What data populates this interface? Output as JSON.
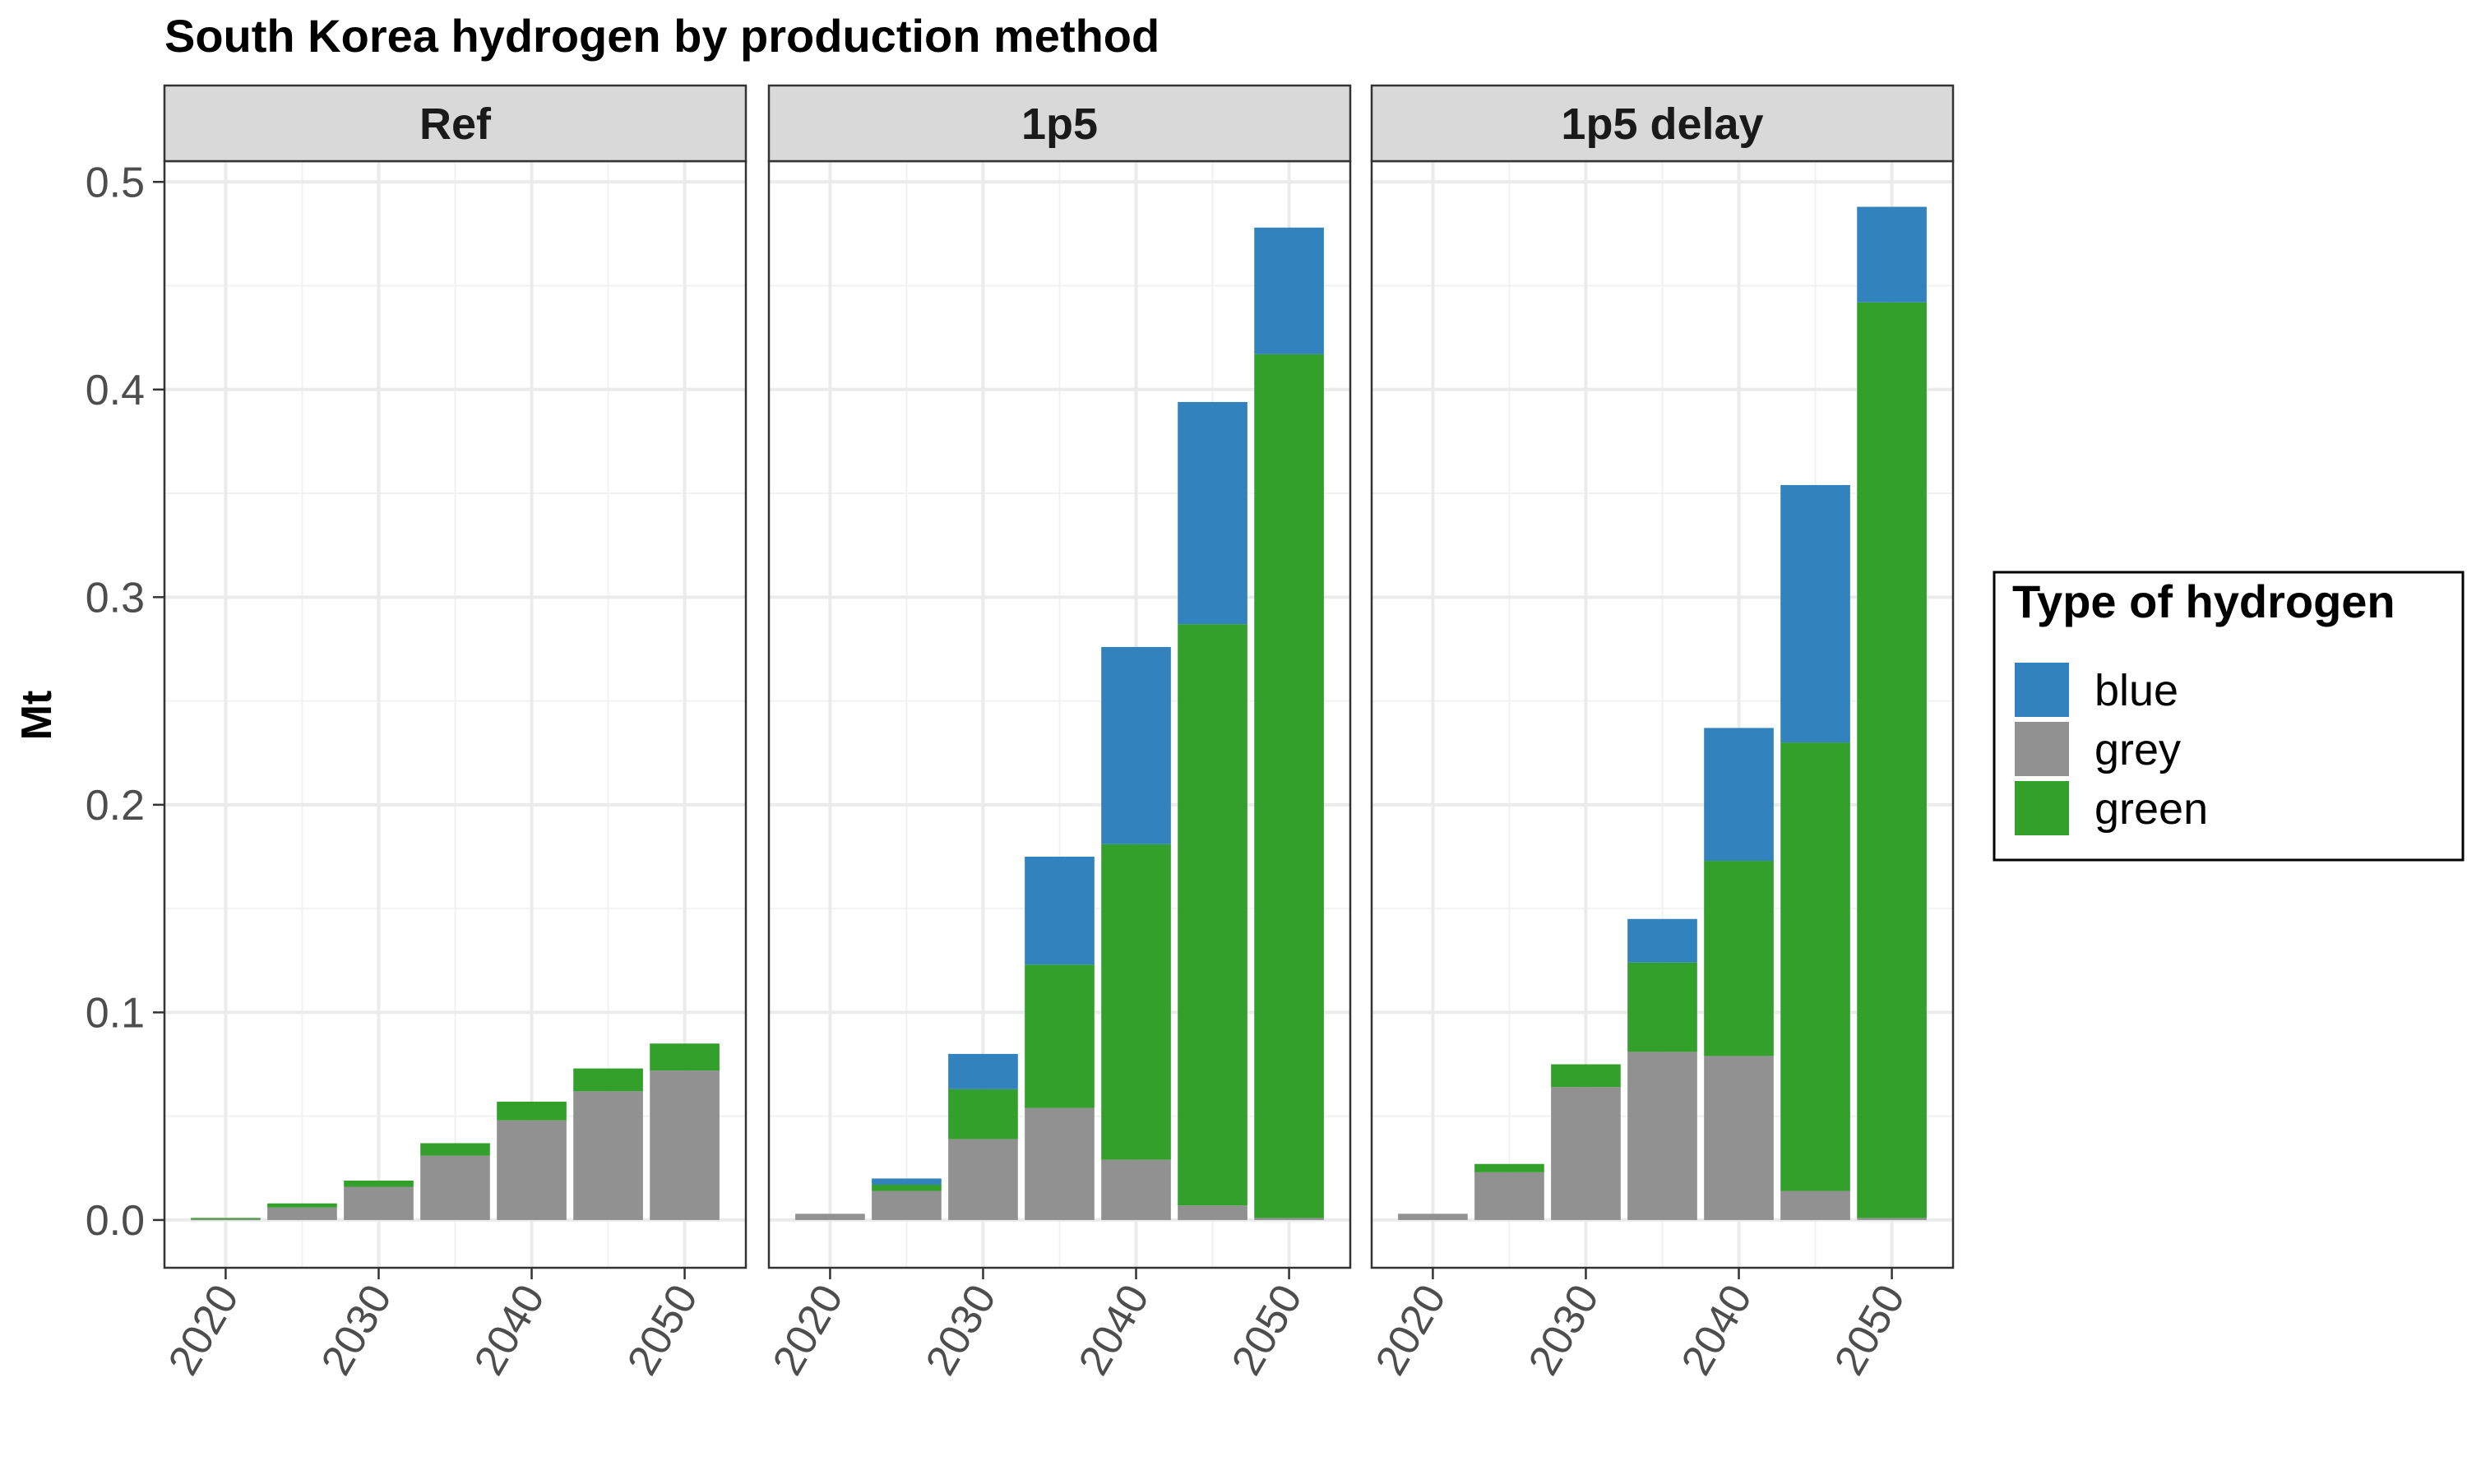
{
  "chart_data": {
    "type": "bar",
    "stacked": true,
    "title": "South Korea hydrogen by production method",
    "xlabel": "",
    "ylabel": "Mt",
    "ylim": [
      -0.023,
      0.51
    ],
    "yticks": [
      "0.0",
      "0.1",
      "0.2",
      "0.3",
      "0.4",
      "0.5"
    ],
    "xticks": [
      "2020",
      "2030",
      "2040",
      "2050"
    ],
    "x": [
      2020,
      2025,
      2030,
      2035,
      2040,
      2045,
      2050
    ],
    "grid": true,
    "legend": {
      "title": "Type of hydrogen",
      "position": "right",
      "entries": [
        "blue",
        "grey",
        "green"
      ]
    },
    "stack_order": [
      "grey",
      "green",
      "blue"
    ],
    "colors": {
      "blue": "#3182bd",
      "grey": "#919191",
      "green": "#33a02c"
    },
    "panels": [
      {
        "name": "Ref",
        "series": [
          {
            "name": "grey",
            "values": [
              0.0005,
              0.006,
              0.016,
              0.031,
              0.048,
              0.062,
              0.072
            ]
          },
          {
            "name": "green",
            "values": [
              0.0005,
              0.002,
              0.003,
              0.006,
              0.009,
              0.011,
              0.013
            ]
          },
          {
            "name": "blue",
            "values": [
              0,
              0,
              0,
              0,
              0,
              0,
              0
            ]
          }
        ]
      },
      {
        "name": "1p5",
        "series": [
          {
            "name": "grey",
            "values": [
              0.003,
              0.014,
              0.039,
              0.054,
              0.029,
              0.007,
              0.001
            ]
          },
          {
            "name": "green",
            "values": [
              0,
              0.003,
              0.024,
              0.069,
              0.152,
              0.28,
              0.416
            ]
          },
          {
            "name": "blue",
            "values": [
              0,
              0.003,
              0.017,
              0.052,
              0.095,
              0.107,
              0.061
            ]
          }
        ]
      },
      {
        "name": "1p5 delay",
        "series": [
          {
            "name": "grey",
            "values": [
              0.003,
              0.023,
              0.064,
              0.081,
              0.079,
              0.014,
              0.001
            ]
          },
          {
            "name": "green",
            "values": [
              0,
              0.004,
              0.011,
              0.043,
              0.094,
              0.216,
              0.441
            ]
          },
          {
            "name": "blue",
            "values": [
              0,
              0,
              0,
              0.021,
              0.064,
              0.124,
              0.046
            ]
          }
        ]
      }
    ]
  }
}
